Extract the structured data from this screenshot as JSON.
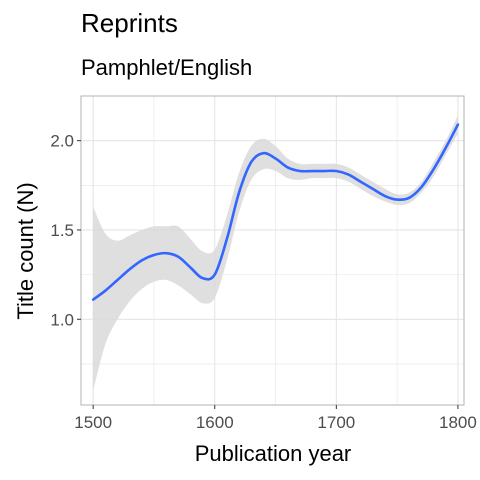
{
  "chart_data": {
    "type": "line",
    "title": "Reprints",
    "subtitle": "Pamphlet/English",
    "xlabel": "Publication year",
    "ylabel": "Title count (N)",
    "xlim": [
      1490,
      1805
    ],
    "ylim": [
      0.52,
      2.25
    ],
    "xticks": [
      1500,
      1600,
      1700,
      1800
    ],
    "xtick_labels": [
      "1500",
      "1600",
      "1700",
      "1800"
    ],
    "yticks": [
      1.0,
      1.5,
      2.0
    ],
    "ytick_labels": [
      "1.0",
      "1.5",
      "2.0"
    ],
    "grid": true,
    "smooth": {
      "x": [
        1500,
        1510,
        1520,
        1530,
        1540,
        1550,
        1560,
        1570,
        1580,
        1590,
        1600,
        1610,
        1620,
        1630,
        1640,
        1650,
        1660,
        1670,
        1680,
        1690,
        1700,
        1710,
        1720,
        1730,
        1740,
        1750,
        1760,
        1770,
        1780,
        1790,
        1800
      ],
      "y": [
        1.11,
        1.16,
        1.22,
        1.28,
        1.33,
        1.36,
        1.37,
        1.35,
        1.29,
        1.23,
        1.25,
        1.45,
        1.71,
        1.88,
        1.93,
        1.9,
        1.85,
        1.83,
        1.83,
        1.83,
        1.83,
        1.81,
        1.77,
        1.73,
        1.69,
        1.67,
        1.68,
        1.74,
        1.84,
        1.96,
        2.09
      ],
      "lower": [
        0.6,
        0.86,
        1.0,
        1.1,
        1.17,
        1.21,
        1.22,
        1.19,
        1.14,
        1.09,
        1.12,
        1.33,
        1.6,
        1.78,
        1.84,
        1.83,
        1.79,
        1.78,
        1.79,
        1.79,
        1.79,
        1.77,
        1.73,
        1.69,
        1.66,
        1.64,
        1.65,
        1.71,
        1.8,
        1.92,
        2.04
      ],
      "upper": [
        1.63,
        1.48,
        1.44,
        1.47,
        1.5,
        1.52,
        1.52,
        1.52,
        1.45,
        1.38,
        1.39,
        1.58,
        1.82,
        1.97,
        2.01,
        1.97,
        1.9,
        1.87,
        1.87,
        1.87,
        1.87,
        1.85,
        1.81,
        1.77,
        1.73,
        1.7,
        1.71,
        1.77,
        1.88,
        2.0,
        2.14
      ]
    },
    "colors": {
      "line": "#3366FF",
      "band": "#D9D9D9",
      "grid": "#E5E5E5",
      "panel_border": "#B3B3B3"
    }
  }
}
